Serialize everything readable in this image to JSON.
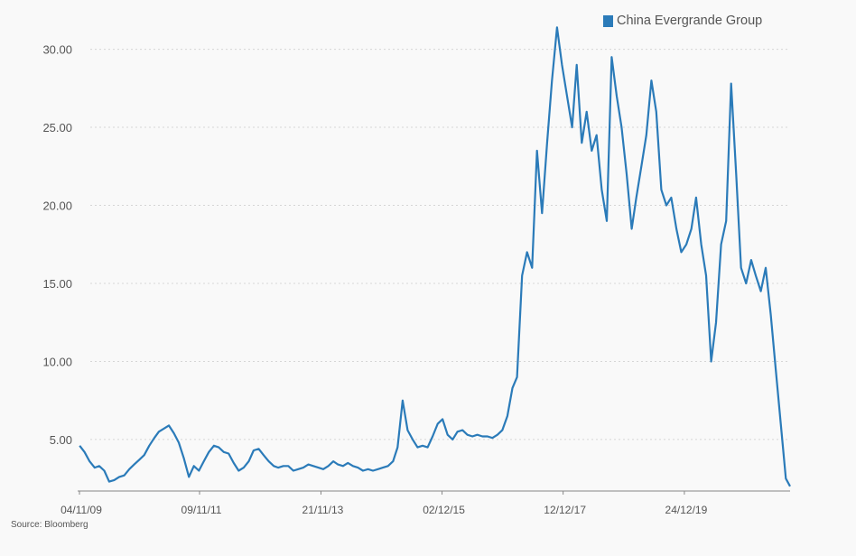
{
  "chart_data": {
    "type": "line",
    "title": "",
    "xlabel": "",
    "ylabel": "",
    "source": "Source: Bloomberg",
    "y_ticks": [
      "5.00",
      "10.00",
      "15.00",
      "20.00",
      "25.00",
      "30.00"
    ],
    "y_tick_values": [
      5,
      10,
      15,
      20,
      25,
      30
    ],
    "ylim": [
      1.7,
      32
    ],
    "x_ticks": [
      "04/11/09",
      "09/11/11",
      "21/11/13",
      "02/12/15",
      "12/12/17",
      "24/12/19"
    ],
    "x_tick_dates": [
      "2009-11-04",
      "2011-11-09",
      "2013-11-21",
      "2015-12-02",
      "2017-12-12",
      "2019-12-24"
    ],
    "xlim": [
      "2009-11-04",
      "2021-10-01"
    ],
    "grid": "horizontal dotted",
    "legend_position": "top-right",
    "series": [
      {
        "name": "China Evergrande Group",
        "color": "#2b7bb9",
        "points": [
          [
            "2009-11-05",
            4.6
          ],
          [
            "2009-12-05",
            4.2
          ],
          [
            "2010-01-05",
            3.6
          ],
          [
            "2010-02-05",
            3.2
          ],
          [
            "2010-03-05",
            3.3
          ],
          [
            "2010-04-05",
            3.0
          ],
          [
            "2010-05-05",
            2.3
          ],
          [
            "2010-06-05",
            2.4
          ],
          [
            "2010-07-05",
            2.6
          ],
          [
            "2010-08-05",
            2.7
          ],
          [
            "2010-09-05",
            3.1
          ],
          [
            "2010-10-05",
            3.4
          ],
          [
            "2010-11-05",
            3.7
          ],
          [
            "2010-12-05",
            4.0
          ],
          [
            "2011-01-05",
            4.6
          ],
          [
            "2011-02-05",
            5.1
          ],
          [
            "2011-03-05",
            5.5
          ],
          [
            "2011-04-05",
            5.7
          ],
          [
            "2011-05-05",
            5.9
          ],
          [
            "2011-06-05",
            5.4
          ],
          [
            "2011-07-05",
            4.8
          ],
          [
            "2011-08-05",
            3.8
          ],
          [
            "2011-09-05",
            2.6
          ],
          [
            "2011-10-05",
            3.3
          ],
          [
            "2011-11-05",
            3.0
          ],
          [
            "2011-12-05",
            3.6
          ],
          [
            "2012-01-05",
            4.2
          ],
          [
            "2012-02-05",
            4.6
          ],
          [
            "2012-03-05",
            4.5
          ],
          [
            "2012-04-05",
            4.2
          ],
          [
            "2012-05-05",
            4.1
          ],
          [
            "2012-06-05",
            3.5
          ],
          [
            "2012-07-05",
            3.0
          ],
          [
            "2012-08-05",
            3.2
          ],
          [
            "2012-09-05",
            3.6
          ],
          [
            "2012-10-05",
            4.3
          ],
          [
            "2012-11-05",
            4.4
          ],
          [
            "2012-12-05",
            4.0
          ],
          [
            "2013-01-05",
            3.6
          ],
          [
            "2013-02-05",
            3.3
          ],
          [
            "2013-03-05",
            3.2
          ],
          [
            "2013-04-05",
            3.3
          ],
          [
            "2013-05-05",
            3.3
          ],
          [
            "2013-06-05",
            3.0
          ],
          [
            "2013-07-05",
            3.1
          ],
          [
            "2013-08-05",
            3.2
          ],
          [
            "2013-09-05",
            3.4
          ],
          [
            "2013-10-05",
            3.3
          ],
          [
            "2013-11-05",
            3.2
          ],
          [
            "2013-12-05",
            3.1
          ],
          [
            "2014-01-05",
            3.3
          ],
          [
            "2014-02-05",
            3.6
          ],
          [
            "2014-03-05",
            3.4
          ],
          [
            "2014-04-05",
            3.3
          ],
          [
            "2014-05-05",
            3.5
          ],
          [
            "2014-06-05",
            3.3
          ],
          [
            "2014-07-05",
            3.2
          ],
          [
            "2014-08-05",
            3.0
          ],
          [
            "2014-09-05",
            3.1
          ],
          [
            "2014-10-05",
            3.0
          ],
          [
            "2014-11-05",
            3.1
          ],
          [
            "2014-12-05",
            3.2
          ],
          [
            "2015-01-05",
            3.3
          ],
          [
            "2015-02-05",
            3.6
          ],
          [
            "2015-03-05",
            4.5
          ],
          [
            "2015-04-05",
            7.5
          ],
          [
            "2015-05-05",
            5.6
          ],
          [
            "2015-06-05",
            5.0
          ],
          [
            "2015-07-05",
            4.5
          ],
          [
            "2015-08-05",
            4.6
          ],
          [
            "2015-09-05",
            4.5
          ],
          [
            "2015-10-05",
            5.2
          ],
          [
            "2015-11-05",
            6.0
          ],
          [
            "2015-12-05",
            6.3
          ],
          [
            "2016-01-05",
            5.3
          ],
          [
            "2016-02-05",
            5.0
          ],
          [
            "2016-03-05",
            5.5
          ],
          [
            "2016-04-05",
            5.6
          ],
          [
            "2016-05-05",
            5.3
          ],
          [
            "2016-06-05",
            5.2
          ],
          [
            "2016-07-05",
            5.3
          ],
          [
            "2016-08-05",
            5.2
          ],
          [
            "2016-09-05",
            5.2
          ],
          [
            "2016-10-05",
            5.1
          ],
          [
            "2016-11-05",
            5.3
          ],
          [
            "2016-12-05",
            5.6
          ],
          [
            "2017-01-05",
            6.5
          ],
          [
            "2017-02-05",
            8.3
          ],
          [
            "2017-03-05",
            9.0
          ],
          [
            "2017-04-05",
            15.5
          ],
          [
            "2017-05-05",
            17.0
          ],
          [
            "2017-06-05",
            16.0
          ],
          [
            "2017-07-05",
            23.5
          ],
          [
            "2017-08-05",
            19.5
          ],
          [
            "2017-09-05",
            24.0
          ],
          [
            "2017-10-05",
            28.0
          ],
          [
            "2017-11-05",
            31.4
          ],
          [
            "2017-12-05",
            29.0
          ],
          [
            "2018-01-05",
            27.0
          ],
          [
            "2018-02-05",
            25.0
          ],
          [
            "2018-03-05",
            29.0
          ],
          [
            "2018-04-05",
            24.0
          ],
          [
            "2018-05-05",
            26.0
          ],
          [
            "2018-06-05",
            23.5
          ],
          [
            "2018-07-05",
            24.5
          ],
          [
            "2018-08-05",
            21.0
          ],
          [
            "2018-09-05",
            19.0
          ],
          [
            "2018-10-05",
            29.5
          ],
          [
            "2018-11-05",
            27.0
          ],
          [
            "2018-12-05",
            25.0
          ],
          [
            "2019-01-05",
            22.0
          ],
          [
            "2019-02-05",
            18.5
          ],
          [
            "2019-03-05",
            20.5
          ],
          [
            "2019-04-05",
            22.5
          ],
          [
            "2019-05-05",
            24.5
          ],
          [
            "2019-06-05",
            28.0
          ],
          [
            "2019-07-05",
            26.0
          ],
          [
            "2019-08-05",
            21.0
          ],
          [
            "2019-09-05",
            20.0
          ],
          [
            "2019-10-05",
            20.5
          ],
          [
            "2019-11-05",
            18.5
          ],
          [
            "2019-12-05",
            17.0
          ],
          [
            "2020-01-05",
            17.5
          ],
          [
            "2020-02-05",
            18.5
          ],
          [
            "2020-03-05",
            20.5
          ],
          [
            "2020-04-05",
            17.5
          ],
          [
            "2020-05-05",
            15.5
          ],
          [
            "2020-06-05",
            10.0
          ],
          [
            "2020-07-05",
            12.5
          ],
          [
            "2020-08-05",
            17.5
          ],
          [
            "2020-09-05",
            19.0
          ],
          [
            "2020-10-05",
            27.8
          ],
          [
            "2020-11-05",
            22.0
          ],
          [
            "2020-12-05",
            16.0
          ],
          [
            "2021-01-05",
            15.0
          ],
          [
            "2021-02-05",
            16.5
          ],
          [
            "2021-03-05",
            15.5
          ],
          [
            "2021-04-05",
            14.5
          ],
          [
            "2021-05-05",
            16.0
          ],
          [
            "2021-06-05",
            13.0
          ],
          [
            "2021-07-05",
            9.5
          ],
          [
            "2021-08-05",
            6.0
          ],
          [
            "2021-09-05",
            2.5
          ],
          [
            "2021-10-01",
            2.0
          ]
        ]
      }
    ]
  }
}
